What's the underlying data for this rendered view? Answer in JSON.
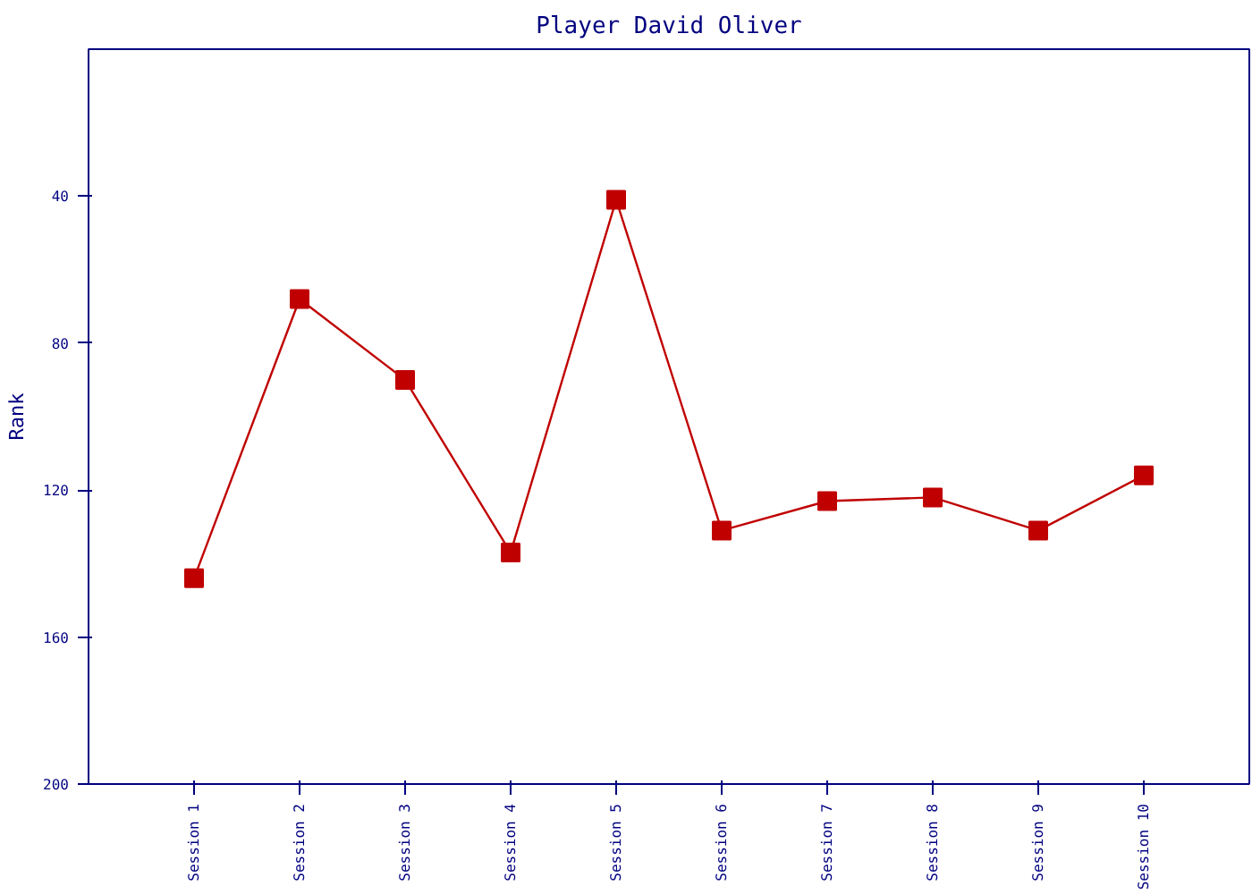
{
  "chart_data": {
    "type": "line",
    "title": "Player David Oliver",
    "ylabel": "Rank",
    "categories": [
      "Session 1",
      "Session 2",
      "Session 3",
      "Session 4",
      "Session 5",
      "Session 6",
      "Session 7",
      "Session 8",
      "Session 9",
      "Session 10"
    ],
    "series": [
      {
        "color": "#c00000",
        "values": [
          144,
          68,
          90,
          137,
          41,
          131,
          123,
          122,
          131,
          116
        ]
      }
    ],
    "ylim": [
      200,
      0
    ],
    "yticks": [
      40,
      80,
      120,
      160,
      200
    ],
    "marker": "square",
    "line_style": "solid"
  }
}
